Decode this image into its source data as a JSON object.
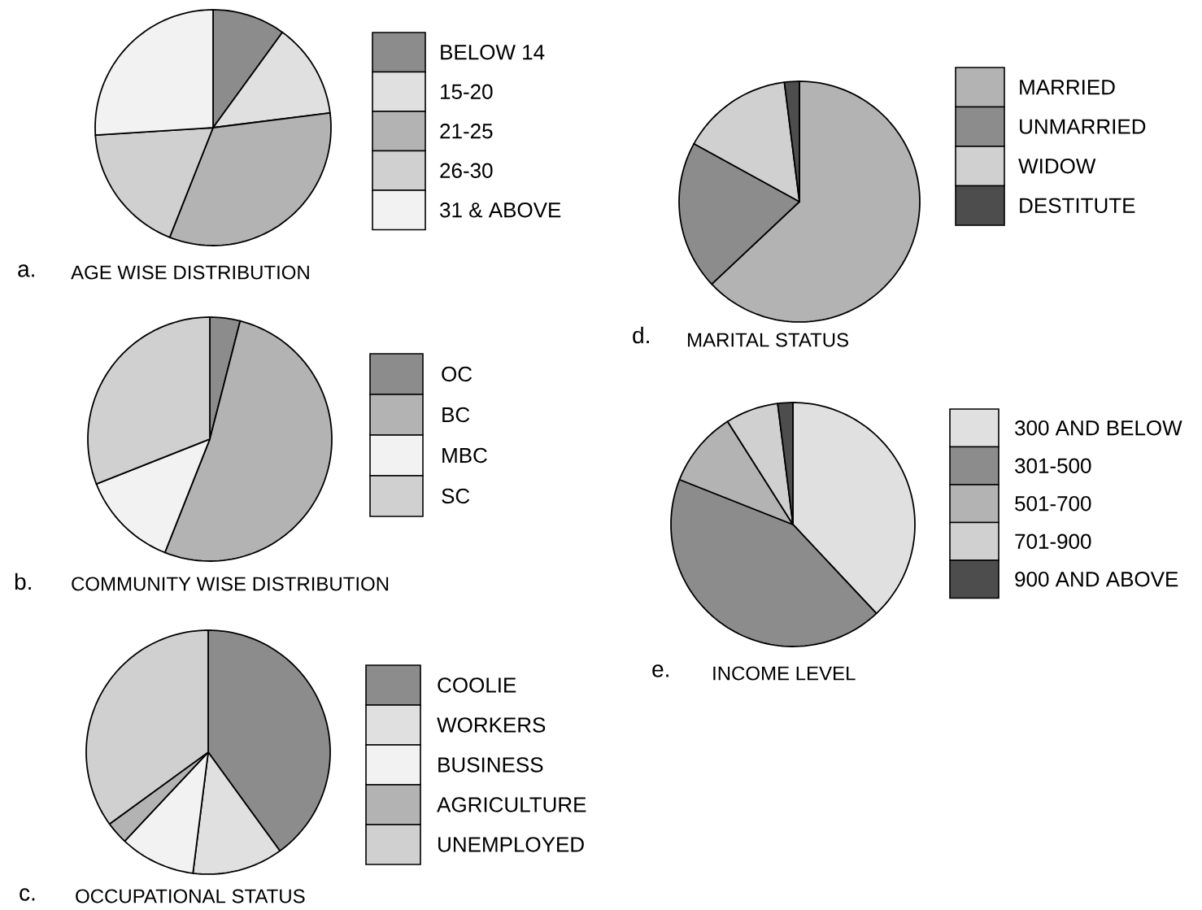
{
  "chart_data": [
    {
      "type": "pie",
      "title": "AGE WISE DISTRIBUTION",
      "annotations": [
        "a."
      ],
      "categories": [
        "BELOW 14",
        "15-20",
        "21-25",
        "26-30",
        "31 & ABOVE"
      ],
      "values": [
        10,
        13,
        33,
        18,
        26
      ],
      "colors": [
        "#8c8c8c",
        "#e0e0e0",
        "#b3b3b3",
        "#d0d0d0",
        "#f2f2f2"
      ],
      "legend": "right"
    },
    {
      "type": "pie",
      "title": "COMMUNITY WISE DISTRIBUTION",
      "annotations": [
        "b."
      ],
      "categories": [
        "OC",
        "BC",
        "MBC",
        "SC"
      ],
      "values": [
        4,
        52,
        13,
        31
      ],
      "colors": [
        "#8c8c8c",
        "#b3b3b3",
        "#f2f2f2",
        "#d0d0d0"
      ],
      "legend": "right"
    },
    {
      "type": "pie",
      "title": "OCCUPATIONAL STATUS",
      "annotations": [
        "c."
      ],
      "categories": [
        "COOLIE",
        "WORKERS",
        "BUSINESS",
        "AGRICULTURE",
        "UNEMPLOYED"
      ],
      "values": [
        40,
        12,
        10,
        3,
        35
      ],
      "colors": [
        "#8c8c8c",
        "#e0e0e0",
        "#f2f2f2",
        "#b3b3b3",
        "#d0d0d0"
      ],
      "legend": "right"
    },
    {
      "type": "pie",
      "title": "MARITAL STATUS",
      "annotations": [
        "d."
      ],
      "categories": [
        "MARRIED",
        "UNMARRIED",
        "WIDOW",
        "DESTITUTE"
      ],
      "values": [
        63,
        20,
        15,
        2
      ],
      "colors": [
        "#b3b3b3",
        "#8c8c8c",
        "#d0d0d0",
        "#4d4d4d"
      ],
      "legend": "right"
    },
    {
      "type": "pie",
      "title": "INCOME LEVEL",
      "annotations": [
        "e."
      ],
      "categories": [
        "300 AND BELOW",
        "301-500",
        "501-700",
        "701-900",
        "900 AND ABOVE"
      ],
      "values": [
        38,
        43,
        10,
        7,
        2
      ],
      "colors": [
        "#e0e0e0",
        "#8c8c8c",
        "#b3b3b3",
        "#d0d0d0",
        "#4d4d4d"
      ],
      "legend": "right"
    }
  ]
}
